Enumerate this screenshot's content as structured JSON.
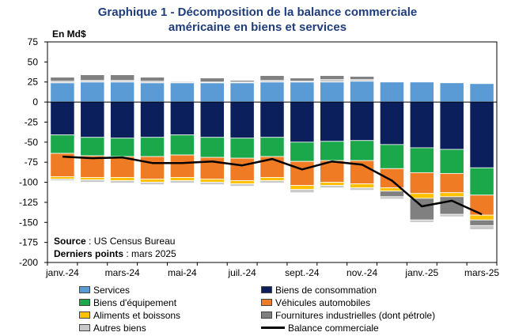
{
  "title_line1": "Graphique 1 - Décomposition  de la balance commerciale",
  "title_line2": "américaine en biens et services",
  "chart_data": {
    "type": "bar",
    "stacked": true,
    "unit_label": "En Md$",
    "ylim": [
      -200,
      75
    ],
    "yticks": [
      75,
      50,
      25,
      0,
      -25,
      -50,
      -75,
      -100,
      -125,
      -150,
      -175,
      -200
    ],
    "x_tick_labels": [
      "janv.-24",
      "mars-24",
      "mai-24",
      "juil.-24",
      "sept.-24",
      "nov.-24",
      "janv.-25",
      "mars-25"
    ],
    "categories": [
      "2024-01",
      "2024-02",
      "2024-03",
      "2024-04",
      "2024-05",
      "2024-06",
      "2024-07",
      "2024-08",
      "2024-09",
      "2024-10",
      "2024-11",
      "2024-12",
      "2025-01",
      "2025-02",
      "2025-03"
    ],
    "series": [
      {
        "name": "Services",
        "color": "#5b9bd5",
        "group": "pos",
        "values": [
          24,
          25,
          25,
          24,
          24,
          24,
          24,
          25,
          25,
          25,
          26,
          25,
          25,
          24,
          23
        ]
      },
      {
        "name": "Autres biens",
        "color": "#c9c9c9",
        "group": "pos",
        "values": [
          2,
          2,
          2,
          2,
          1,
          1,
          1,
          2,
          1,
          3,
          2,
          0,
          0,
          0,
          0
        ]
      },
      {
        "name": "Fournitures industrielles (dont pétrole)",
        "color": "#808080",
        "group": "pos",
        "values": [
          5,
          7,
          7,
          5,
          1,
          5,
          2,
          6,
          4,
          5,
          4,
          0,
          0,
          0,
          0
        ]
      },
      {
        "name": "Biens de consommation",
        "color": "#0a1f5c",
        "group": "neg",
        "values": [
          -41,
          -44,
          -45,
          -44,
          -41,
          -44,
          -45,
          -44,
          -50,
          -49,
          -48,
          -53,
          -57,
          -59,
          -82
        ]
      },
      {
        "name": "Biens d'équipement",
        "color": "#1aa84a",
        "group": "neg",
        "values": [
          -23,
          -23,
          -23,
          -24,
          -25,
          -25,
          -25,
          -24,
          -24,
          -24,
          -25,
          -30,
          -31,
          -30,
          -34
        ]
      },
      {
        "name": "Véhicules automobiles",
        "color": "#f07b25",
        "group": "neg",
        "values": [
          -29,
          -27,
          -26,
          -28,
          -28,
          -27,
          -28,
          -26,
          -30,
          -27,
          -29,
          -24,
          -26,
          -24,
          -25
        ]
      },
      {
        "name": "Aliments et boissons",
        "color": "#ffc000",
        "group": "neg",
        "values": [
          -3,
          -3,
          -4,
          -4,
          -4,
          -4,
          -4,
          -4,
          -5,
          -4,
          -5,
          -4,
          -6,
          -5,
          -6
        ]
      },
      {
        "name": "Fournitures industrielles (dont pétrole)",
        "color": "#808080",
        "group": "neg",
        "values": [
          0,
          0,
          0,
          0,
          0,
          0,
          0,
          0,
          0,
          0,
          0,
          -7,
          -27,
          -22,
          -7
        ]
      },
      {
        "name": "Autres biens",
        "color": "#c9c9c9",
        "group": "neg",
        "values": [
          -2,
          -3,
          -3,
          -3,
          -3,
          -3,
          -3,
          -3,
          -4,
          -3,
          -3,
          -3,
          -3,
          -3,
          -5
        ]
      }
    ],
    "line": {
      "name": "Balance commerciale",
      "color": "#000000",
      "values": [
        -68,
        -70,
        -69,
        -76,
        -76,
        -74,
        -79,
        -71,
        -84,
        -74,
        -78,
        -98,
        -130,
        -123,
        -140
      ]
    },
    "legend": [
      {
        "name": "Services",
        "color": "#5b9bd5",
        "kind": "box"
      },
      {
        "name": "Biens de consommation",
        "color": "#0a1f5c",
        "kind": "box"
      },
      {
        "name": "Biens d'équipement",
        "color": "#1aa84a",
        "kind": "box"
      },
      {
        "name": "Véhicules automobiles",
        "color": "#f07b25",
        "kind": "box"
      },
      {
        "name": "Aliments et boissons",
        "color": "#ffc000",
        "kind": "box"
      },
      {
        "name": "Fournitures industrielles (dont pétrole)",
        "color": "#808080",
        "kind": "box"
      },
      {
        "name": "Autres biens",
        "color": "#c9c9c9",
        "kind": "box"
      },
      {
        "name": "Balance commerciale",
        "color": "#000000",
        "kind": "line"
      }
    ],
    "legend_position": "bottom",
    "source_label": "Source",
    "source_text": " : US Census Bureau",
    "last_points_label": "Derniers points",
    "last_points_text": " : mars 2025"
  }
}
